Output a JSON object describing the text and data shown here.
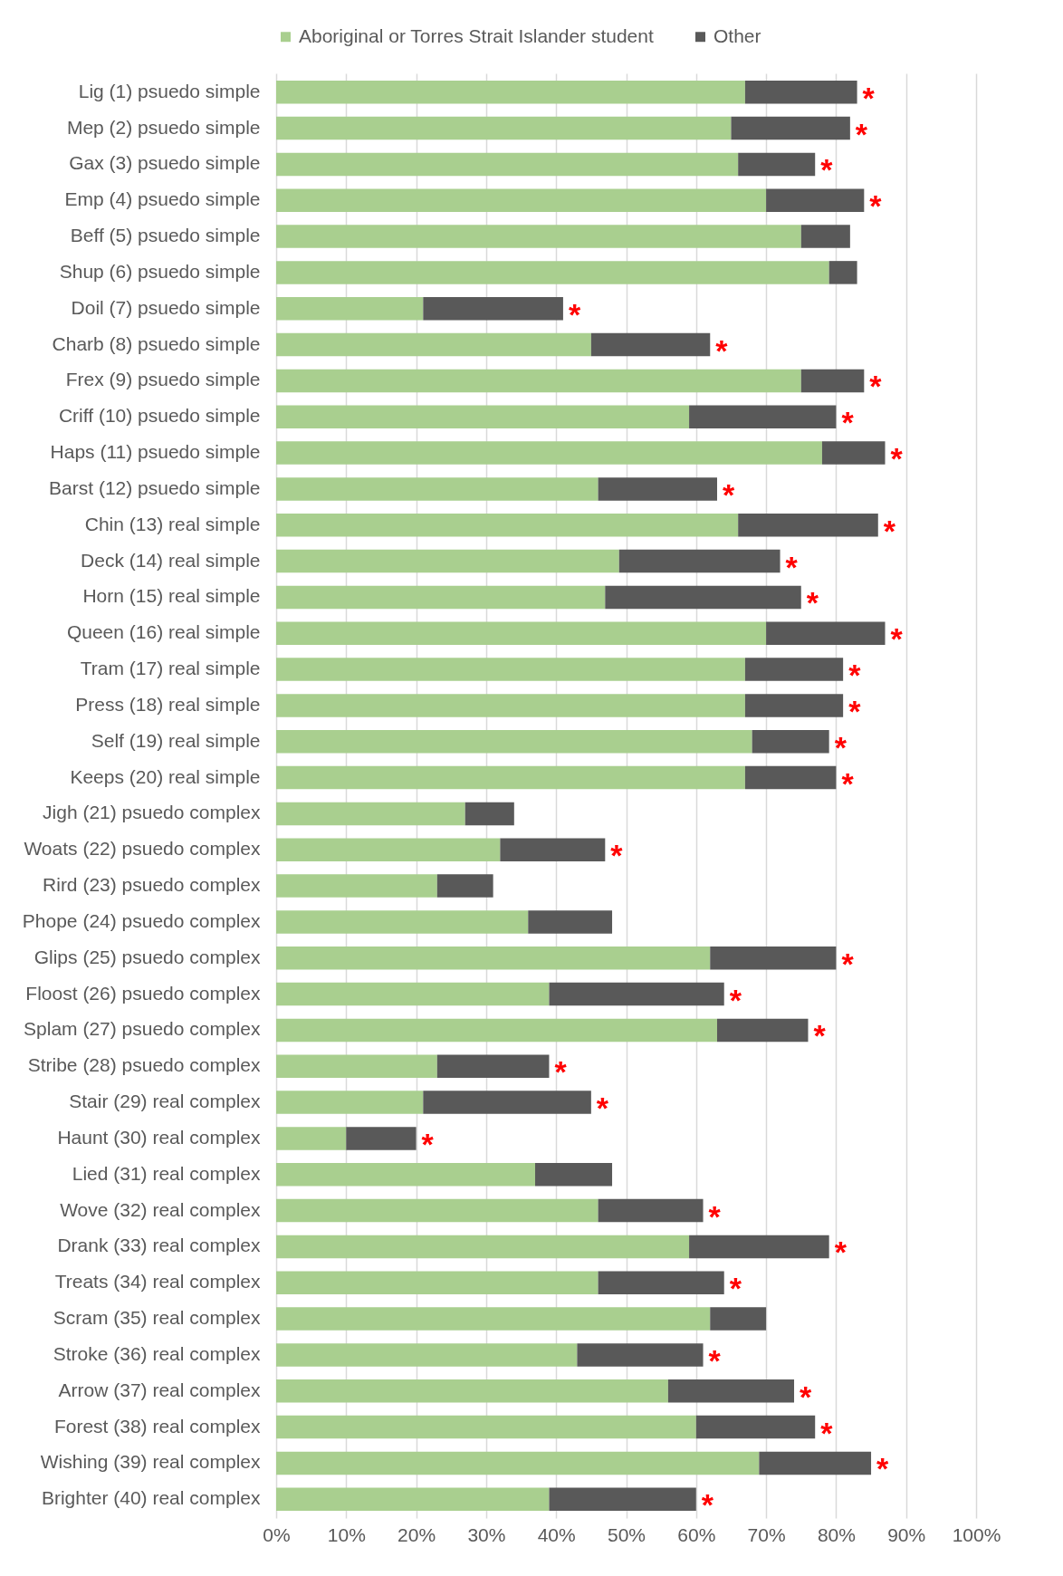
{
  "chart_data": {
    "type": "bar",
    "orientation": "horizontal",
    "stacked": true,
    "legend": "top",
    "grid": "x",
    "categories": [
      "Lig (1) psuedo simple",
      "Mep (2) psuedo simple",
      "Gax (3) psuedo simple",
      "Emp (4) psuedo simple",
      "Beff (5) psuedo simple",
      "Shup (6) psuedo simple",
      "Doil (7) psuedo simple",
      "Charb (8) psuedo simple",
      "Frex (9) psuedo simple",
      "Criff (10) psuedo simple",
      "Haps (11) psuedo simple",
      "Barst (12) psuedo simple",
      "Chin (13) real simple",
      "Deck (14) real simple",
      "Horn (15) real simple",
      "Queen (16) real simple",
      "Tram (17) real simple",
      "Press (18) real simple",
      "Self (19) real simple",
      "Keeps (20) real simple",
      "Jigh (21) psuedo complex",
      "Woats (22) psuedo complex",
      "Rird (23) psuedo complex",
      "Phope (24) psuedo complex",
      "Glips (25) psuedo complex",
      "Floost (26) psuedo complex",
      "Splam (27) psuedo complex",
      "Stribe (28) psuedo complex",
      "Stair (29) real complex",
      "Haunt (30) real complex",
      "Lied (31) real complex",
      "Wove (32) real complex",
      "Drank (33) real complex",
      "Treats (34) real complex",
      "Scram (35) real complex",
      "Stroke (36) real complex",
      "Arrow (37) real complex",
      "Forest (38) real complex",
      "Wishing (39) real complex",
      "Brighter (40) real complex"
    ],
    "series": [
      {
        "name": "Aboriginal or Torres Strait Islander student",
        "color": "#a9cf8f",
        "values": [
          67,
          65,
          66,
          70,
          75,
          79,
          21,
          45,
          75,
          59,
          78,
          46,
          66,
          49,
          47,
          70,
          67,
          67,
          68,
          67,
          27,
          32,
          23,
          36,
          62,
          39,
          63,
          23,
          21,
          10,
          37,
          46,
          59,
          46,
          62,
          43,
          56,
          60,
          69,
          39
        ]
      },
      {
        "name": "Other",
        "color": "#595959",
        "values": [
          16,
          17,
          11,
          14,
          7,
          4,
          20,
          17,
          9,
          21,
          9,
          17,
          20,
          23,
          28,
          17,
          14,
          14,
          11,
          13,
          7,
          15,
          8,
          12,
          18,
          25,
          13,
          16,
          24,
          10,
          11,
          15,
          20,
          18,
          8,
          18,
          18,
          17,
          16,
          21
        ]
      }
    ],
    "xlim": [
      0,
      100
    ],
    "xticks": [
      {
        "value": 0,
        "label": "0%"
      },
      {
        "value": 10,
        "label": "10%"
      },
      {
        "value": 20,
        "label": "20%"
      },
      {
        "value": 30,
        "label": "30%"
      },
      {
        "value": 40,
        "label": "40%"
      },
      {
        "value": 50,
        "label": "50%"
      },
      {
        "value": 60,
        "label": "60%"
      },
      {
        "value": 70,
        "label": "70%"
      },
      {
        "value": 80,
        "label": "80%"
      },
      {
        "value": 90,
        "label": "90%"
      },
      {
        "value": 100,
        "label": "100%"
      }
    ],
    "annotations": [
      {
        "text": "*",
        "x": 83,
        "y": "Lig (1) psuedo simple"
      },
      {
        "text": "*",
        "x": 82,
        "y": "Mep (2) psuedo simple"
      },
      {
        "text": "*",
        "x": 77,
        "y": "Gax (3) psuedo simple"
      },
      {
        "text": "*",
        "x": 84,
        "y": "Emp (4) psuedo simple"
      },
      {
        "text": "*",
        "x": 41,
        "y": "Doil (7) psuedo simple"
      },
      {
        "text": "*",
        "x": 62,
        "y": "Charb (8) psuedo simple"
      },
      {
        "text": "*",
        "x": 84,
        "y": "Frex (9) psuedo simple"
      },
      {
        "text": "*",
        "x": 80,
        "y": "Criff (10) psuedo simple"
      },
      {
        "text": "*",
        "x": 87,
        "y": "Haps (11) psuedo simple"
      },
      {
        "text": "*",
        "x": 63,
        "y": "Barst (12) psuedo simple"
      },
      {
        "text": "*",
        "x": 86,
        "y": "Chin (13) real simple"
      },
      {
        "text": "*",
        "x": 72,
        "y": "Deck (14) real simple"
      },
      {
        "text": "*",
        "x": 75,
        "y": "Horn (15) real simple"
      },
      {
        "text": "*",
        "x": 87,
        "y": "Queen (16) real simple"
      },
      {
        "text": "*",
        "x": 81,
        "y": "Tram (17) real simple"
      },
      {
        "text": "*",
        "x": 81,
        "y": "Press (18) real simple"
      },
      {
        "text": "*",
        "x": 79,
        "y": "Self (19) real simple"
      },
      {
        "text": "*",
        "x": 80,
        "y": "Keeps (20) real simple"
      },
      {
        "text": "*",
        "x": 47,
        "y": "Woats (22) psuedo complex"
      },
      {
        "text": "*",
        "x": 80,
        "y": "Glips (25) psuedo complex"
      },
      {
        "text": "*",
        "x": 64,
        "y": "Floost (26) psuedo complex"
      },
      {
        "text": "*",
        "x": 76,
        "y": "Splam (27) psuedo complex"
      },
      {
        "text": "*",
        "x": 39,
        "y": "Stribe (28) psuedo complex"
      },
      {
        "text": "*",
        "x": 45,
        "y": "Stair (29) real complex"
      },
      {
        "text": "*",
        "x": 20,
        "y": "Haunt (30) real complex"
      },
      {
        "text": "*",
        "x": 61,
        "y": "Wove (32) real complex"
      },
      {
        "text": "*",
        "x": 79,
        "y": "Drank (33) real complex"
      },
      {
        "text": "*",
        "x": 64,
        "y": "Treats (34) real complex"
      },
      {
        "text": "*",
        "x": 61,
        "y": "Stroke (36) real complex"
      },
      {
        "text": "*",
        "x": 74,
        "y": "Arrow (37) real complex"
      },
      {
        "text": "*",
        "x": 77,
        "y": "Forest (38) real complex"
      },
      {
        "text": "*",
        "x": 85,
        "y": "Wishing (39) real complex"
      },
      {
        "text": "*",
        "x": 60,
        "y": "Brighter (40) real complex"
      }
    ]
  }
}
